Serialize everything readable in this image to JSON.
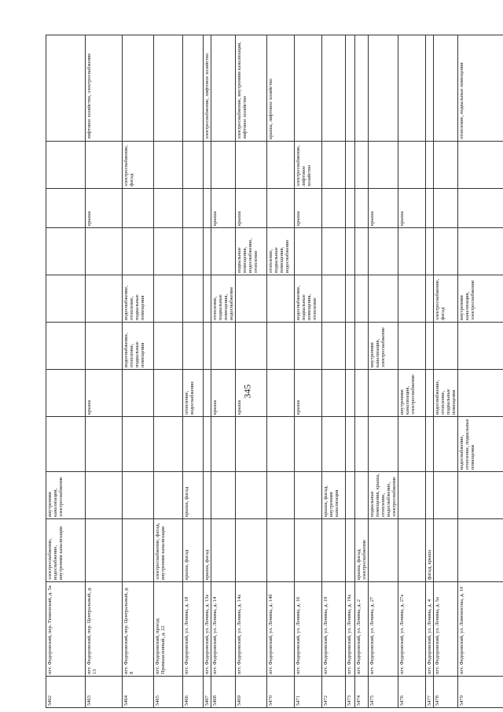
{
  "page_number": "345",
  "table": {
    "rows": [
      [
        "5462",
        "пгт. Федоровский, пер. Тюменский, д. 5а",
        "электроснабжение, водоснабжение, внутренняя канализация",
        "внутренняя канализация, электроснабжение",
        null,
        null,
        null,
        null,
        null,
        null,
        null,
        null
      ],
      [
        "5463",
        "пгт. Федоровский, пер. Центральный, д. 13",
        null,
        null,
        null,
        "крыша",
        null,
        null,
        null,
        "крыша",
        null,
        "лифтовое хозяйство, электроснабжение"
      ],
      [
        "5464",
        "пгт. Федоровский, пер. Центральный, д. 8",
        null,
        null,
        null,
        null,
        "водоснабжение, отопление, подвальные помещения",
        "водоснабжение, отопление, подвальные помещения",
        null,
        null,
        "электроснабжение, фасад",
        null
      ],
      [
        "5465",
        "пгт. Федоровский, проезд Промышленный, д. 22",
        "электроснабжение, фасад, внутренняя канализация",
        null,
        null,
        null,
        null,
        null,
        null,
        null,
        null,
        null
      ],
      [
        "5466",
        "пгт. Федоровский, ул. Ленина, д. 18",
        "крыша, фасад",
        "крыша, фасад",
        null,
        "отопление, водоснабжение",
        null,
        null,
        null,
        null,
        null,
        null
      ],
      [
        "5467",
        "пгт. Федоровский, ул. Ленина, д. 13а",
        "крыша, фасад",
        null,
        null,
        null,
        null,
        null,
        null,
        null,
        null,
        "электроснабжение, лифтовое хозяйство"
      ],
      [
        "5468",
        "пгт. Федоровский, ул. Ленина, д. 14",
        null,
        null,
        null,
        "крыша",
        null,
        "отопление, подвальные помещения, водоснабжение",
        null,
        "крыша",
        null,
        null
      ],
      [
        "5469",
        "пгт. Федоровский, ул. Ленина, д. 14а",
        null,
        null,
        null,
        "крыша",
        null,
        null,
        "подвальные помещения, водоснабжение, отопление",
        "крыша",
        null,
        "электроснабжение, внутренняя канализация, лифтовое хозяйство"
      ],
      [
        "5470",
        "пгт. Федоровский, ул. Ленина, д. 14б",
        null,
        null,
        null,
        null,
        null,
        null,
        "отопление, подвальные помещения, водоснабжение",
        null,
        null,
        "крыша, лифтовое хозяйство"
      ],
      [
        "5471",
        "пгт. Федоровский, ул. Ленина, д. 16",
        null,
        null,
        null,
        "крыша",
        null,
        "водоснабжение, подвальные помещения, отопление",
        null,
        "крыша",
        "электроснабжение, лифтовое хозяйство",
        null
      ],
      [
        "5472",
        "пгт. Федоровский, ул. Ленина, д. 19",
        null,
        "крыша, фасад, внутренняя канализация",
        null,
        null,
        null,
        null,
        null,
        null,
        null,
        null
      ],
      [
        "5473",
        "пгт. Федоровский, ул. Ленина, д. 19а",
        null,
        null,
        null,
        null,
        null,
        null,
        null,
        null,
        null,
        null
      ],
      [
        "5474",
        "пгт. Федоровский, ул. Ленина, д. 2",
        "крыша, фасад, электроснабжение",
        null,
        null,
        null,
        null,
        null,
        null,
        null,
        null,
        null
      ],
      [
        "5475",
        "пгт. Федоровский, ул. Ленина, д. 27",
        null,
        "подвальные помещения, крыша, отопление, водоснабжение, электроснабжение",
        null,
        null,
        "внутренняя канализация, электроснабжение",
        null,
        null,
        "крыша",
        null,
        null
      ],
      [
        "5476",
        "пгт. Федоровский, ул. Ленина, д. 27а",
        null,
        null,
        null,
        "внутренняя канализация, электроснабжение",
        null,
        null,
        null,
        "крыша",
        null,
        null
      ],
      [
        "5477",
        "пгт. Федоровский, ул. Ленина, д. 4",
        "фасад, крыша",
        null,
        null,
        null,
        null,
        null,
        null,
        null,
        null,
        null
      ],
      [
        "5478",
        "пгт. Федоровский, ул. Ленина, д. 5а",
        null,
        null,
        null,
        "водоснабжение, отопление, подвальные помещения",
        null,
        "электроснабжение, фасад",
        null,
        null,
        null,
        null
      ],
      [
        "5479",
        "пгт. Федоровский, ул. Ломоносова, д. 10",
        null,
        null,
        "водоснабжение, отопление, подвальные помещения",
        null,
        null,
        "внутренняя канализация, электроснабжение",
        null,
        null,
        null,
        "отопление, подвальные помещения"
      ]
    ]
  }
}
